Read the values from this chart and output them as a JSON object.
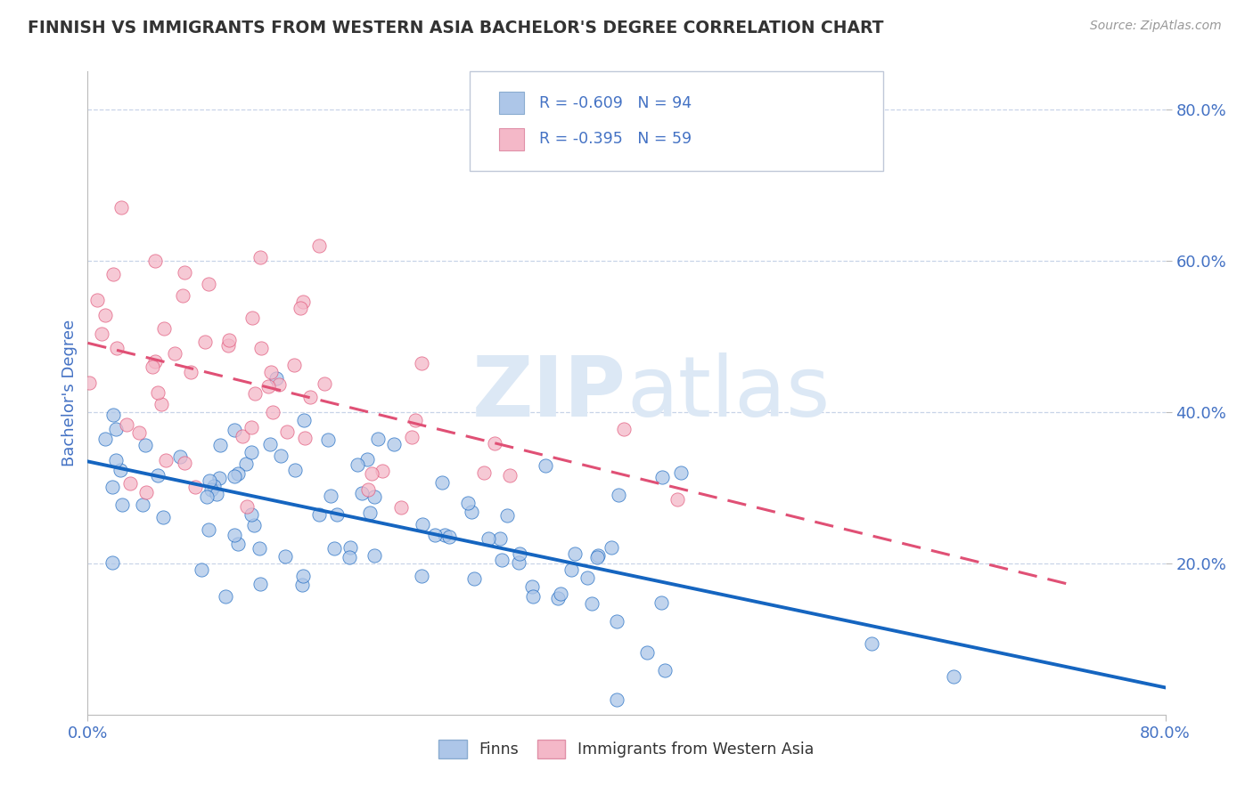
{
  "title": "FINNISH VS IMMIGRANTS FROM WESTERN ASIA BACHELOR'S DEGREE CORRELATION CHART",
  "source": "Source: ZipAtlas.com",
  "ylabel": "Bachelor's Degree",
  "right_yticks": [
    "80.0%",
    "60.0%",
    "40.0%",
    "20.0%"
  ],
  "right_ytick_vals": [
    0.8,
    0.6,
    0.4,
    0.2
  ],
  "r_finns": -0.609,
  "n_finns": 94,
  "r_immigrants": -0.395,
  "n_immigrants": 59,
  "xmin": 0.0,
  "xmax": 0.8,
  "ymin": 0.0,
  "ymax": 0.85,
  "finns_color": "#adc6e8",
  "finns_line_color": "#1565c0",
  "immigrants_color": "#f4b8c8",
  "immigrants_line_color": "#e05075",
  "watermark_color": "#dce8f5",
  "background_color": "#ffffff",
  "grid_color": "#c8d4e8",
  "title_color": "#333333",
  "axis_label_color": "#4472c4",
  "tick_color": "#4472c4",
  "legend_box_color": "#aaaacc",
  "finns_intercept": 0.355,
  "finns_slope": -0.44,
  "immigrants_intercept": 0.48,
  "immigrants_slope": -0.32
}
